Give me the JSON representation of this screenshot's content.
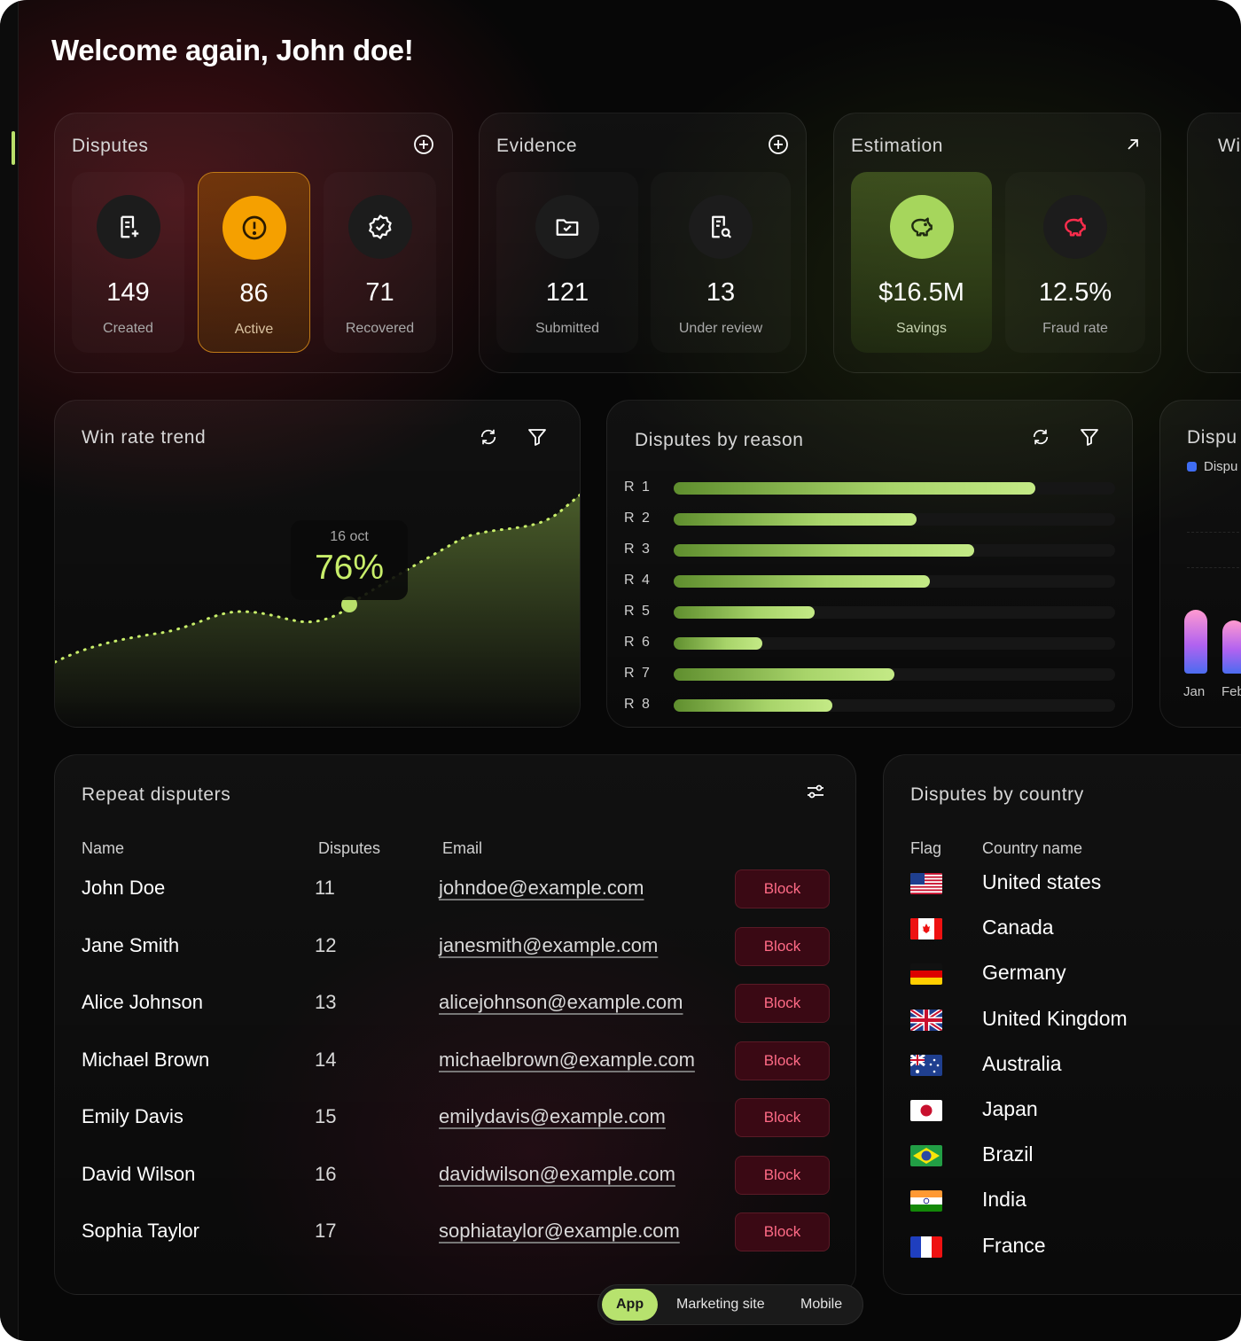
{
  "welcome": "Welcome again, John doe!",
  "disputes_card": {
    "title": "Disputes",
    "stats": [
      {
        "value": "149",
        "label": "Created",
        "icon": "document-plus-icon"
      },
      {
        "value": "86",
        "label": "Active",
        "icon": "alert-circle-icon"
      },
      {
        "value": "71",
        "label": "Recovered",
        "icon": "badge-check-icon"
      }
    ]
  },
  "evidence_card": {
    "title": "Evidence",
    "stats": [
      {
        "value": "121",
        "label": "Submitted",
        "icon": "folder-check-icon"
      },
      {
        "value": "13",
        "label": "Under review",
        "icon": "document-search-icon"
      }
    ]
  },
  "estimation_card": {
    "title": "Estimation",
    "stats": [
      {
        "value": "$16.5M",
        "label": "Savings",
        "icon": "piggy-bank-icon"
      },
      {
        "value": "12.5%",
        "label": "Fraud rate",
        "icon": "piggy-bank-red-icon"
      }
    ]
  },
  "partial_card_title": "Wi",
  "win_rate": {
    "title": "Win rate trend",
    "tooltip_date": "16 oct",
    "tooltip_value": "76%"
  },
  "disputes_by_reason": {
    "title": "Disputes by reason",
    "chart_data": {
      "type": "bar",
      "orientation": "horizontal",
      "categories": [
        "R 1",
        "R 2",
        "R 3",
        "R 4",
        "R 5",
        "R 6",
        "R 7",
        "R 8"
      ],
      "values": [
        82,
        55,
        68,
        58,
        32,
        20,
        50,
        36
      ],
      "xlim": [
        0,
        100
      ]
    }
  },
  "partial_chart": {
    "title": "Dispu",
    "legend": "Dispu",
    "x_labels": [
      "Jan",
      "Feb"
    ]
  },
  "repeat_disputers": {
    "title": "Repeat disputers",
    "columns": [
      "Name",
      "Disputes",
      "Email"
    ],
    "block_label": "Block",
    "rows": [
      {
        "name": "John Doe",
        "disputes": "11",
        "email": "johndoe@example.com"
      },
      {
        "name": "Jane Smith",
        "disputes": "12",
        "email": "janesmith@example.com"
      },
      {
        "name": "Alice Johnson",
        "disputes": "13",
        "email": "alicejohnson@example.com"
      },
      {
        "name": "Michael Brown",
        "disputes": "14",
        "email": "michaelbrown@example.com"
      },
      {
        "name": "Emily Davis",
        "disputes": "15",
        "email": "emilydavis@example.com"
      },
      {
        "name": "David Wilson",
        "disputes": "16",
        "email": "davidwilson@example.com"
      },
      {
        "name": "Sophia Taylor",
        "disputes": "17",
        "email": "sophiataylor@example.com"
      }
    ]
  },
  "disputes_by_country": {
    "title": "Disputes by country",
    "columns": [
      "Flag",
      "Country name"
    ],
    "rows": [
      {
        "country": "United states",
        "flag": "us-flag-icon"
      },
      {
        "country": "Canada",
        "flag": "ca-flag-icon"
      },
      {
        "country": "Germany",
        "flag": "de-flag-icon"
      },
      {
        "country": "United Kingdom",
        "flag": "gb-flag-icon"
      },
      {
        "country": "Australia",
        "flag": "au-flag-icon"
      },
      {
        "country": "Japan",
        "flag": "jp-flag-icon"
      },
      {
        "country": "Brazil",
        "flag": "br-flag-icon"
      },
      {
        "country": "India",
        "flag": "in-flag-icon"
      },
      {
        "country": "France",
        "flag": "fr-flag-icon"
      }
    ]
  },
  "switcher": {
    "options": [
      "App",
      "Marketing site",
      "Mobile"
    ],
    "selected": "App"
  },
  "colors": {
    "accent_green": "#b7e26e",
    "active_orange": "#f5a000",
    "block_red": "#ff6b86",
    "background": "#070707"
  }
}
